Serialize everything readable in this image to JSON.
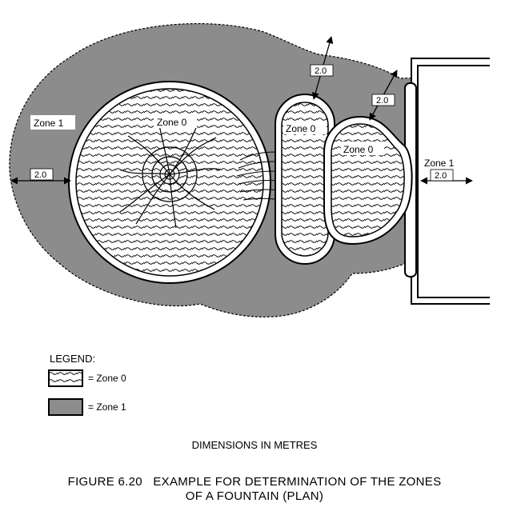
{
  "diagram": {
    "zone1_label_left": "Zone 1",
    "zone1_label_right": "Zone 1",
    "zone0_label_pool": "Zone 0",
    "zone0_label_basin_a": "Zone 0",
    "zone0_label_basin_b": "Zone 0",
    "dim_left": "2.0",
    "dim_right": "2.0",
    "dim_top_a": "2.0",
    "dim_top_b": "2.0",
    "colors": {
      "zone1": "#8c8c8c",
      "zone0": "#ffffff",
      "outline": "#000000"
    }
  },
  "legend": {
    "title": "LEGEND:",
    "zone0_text": "= Zone 0",
    "zone1_text": "= Zone 1"
  },
  "dimensions_note": "DIMENSIONS IN METRES",
  "caption": {
    "line1": "FIGURE 6.20   EXAMPLE FOR DETERMINATION OF THE ZONES",
    "line2": "OF A FOUNTAIN (PLAN)"
  }
}
